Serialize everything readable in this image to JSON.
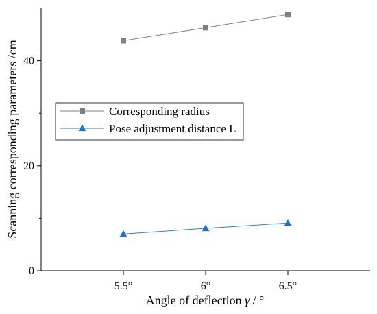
{
  "chart_data": {
    "type": "line",
    "title": "",
    "xlabel_prefix": "Angle of deflection ",
    "xlabel_symbol": "γ",
    "xlabel_suffix": " / °",
    "ylabel": "Scanning corresponding parameters /cm",
    "categories": [
      "5.5°",
      "6°",
      "6.5°"
    ],
    "x": [
      5.5,
      6.0,
      6.5
    ],
    "xlim": [
      5.0,
      7.0
    ],
    "ylim": [
      0,
      50
    ],
    "yticks": [
      0,
      20,
      40
    ],
    "yticks_minor": [
      10,
      30
    ],
    "grid": false,
    "legend_position": "center-left",
    "series": [
      {
        "name": "Corresponding radius",
        "values": [
          43.8,
          46.3,
          48.8
        ],
        "color": "#808080",
        "marker": "square"
      },
      {
        "name": "Pose adjustment distance L",
        "values": [
          7.0,
          8.1,
          9.1
        ],
        "color": "#2a7fd4",
        "marker": "triangle"
      }
    ]
  }
}
